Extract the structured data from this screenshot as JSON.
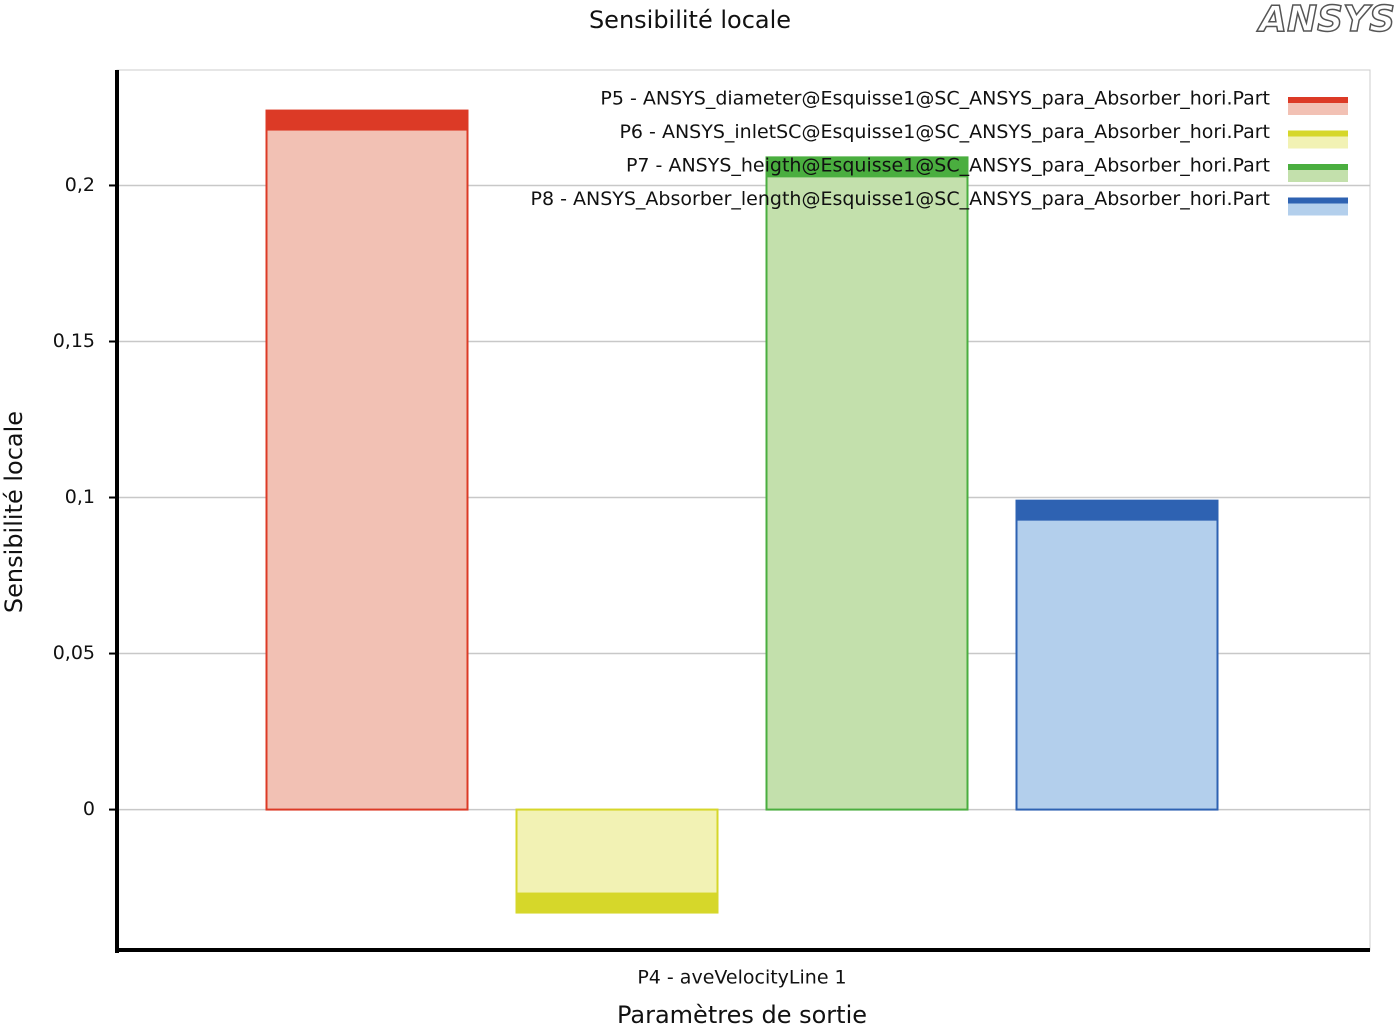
{
  "chart_data": {
    "type": "bar",
    "title": "Sensibilité locale",
    "logo": "ANSYS",
    "y_label": "Sensibilité locale",
    "x_label": "Paramètres de sortie",
    "categories": [
      "P4 - aveVelocityLine 1"
    ],
    "series": [
      {
        "name": "P5 - ANSYS_diameter@Esquisse1@SC_ANSYS_para_Absorber_hori.Part",
        "color": "#dc3a26",
        "light_color": "#f2c1b4",
        "values": [
          0.224
        ]
      },
      {
        "name": "P6 - ANSYS_inletSC@Esquisse1@SC_ANSYS_para_Absorber_hori.Part",
        "color": "#d6d72a",
        "light_color": "#f2f2b4",
        "values": [
          -0.033
        ]
      },
      {
        "name": "P7 - ANSYS_heigth@Esquisse1@SC_ANSYS_para_Absorber_hori.Part",
        "color": "#4aae3f",
        "light_color": "#c3e0ac",
        "values": [
          0.209
        ]
      },
      {
        "name": "P8 - ANSYS_Absorber_length@Esquisse1@SC_ANSYS_para_Absorber_hori.Part",
        "color": "#2e62b2",
        "light_color": "#b3cfec",
        "values": [
          0.099
        ]
      }
    ],
    "ylim": [
      -0.045,
      0.237
    ],
    "yticks": [
      0,
      {
        "value": 0.05,
        "label": "0,05"
      },
      {
        "value": 0.1,
        "label": "0,1"
      },
      {
        "value": 0.15,
        "label": "0,15"
      },
      {
        "value": 0.2,
        "label": "0,2"
      }
    ],
    "grid": true,
    "legend": "top-right"
  }
}
